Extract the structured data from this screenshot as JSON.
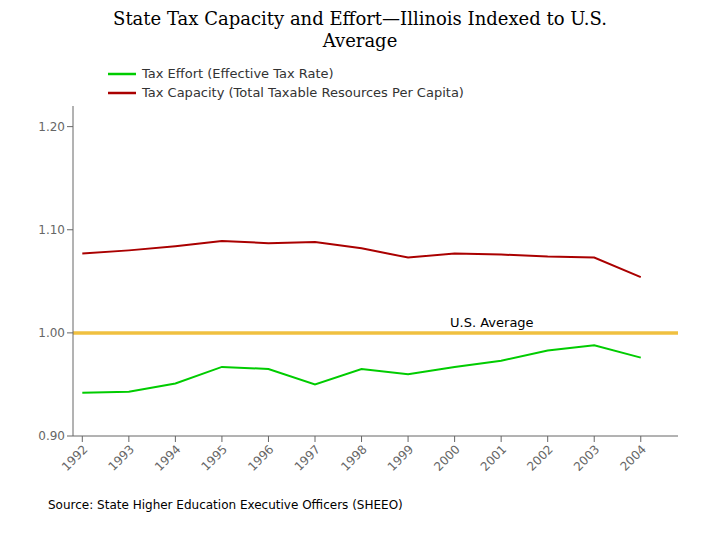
{
  "chart_data": {
    "type": "line",
    "title": "State Tax Capacity and Effort—Illinois Indexed to U.S.\nAverage",
    "x": [
      1992,
      1993,
      1994,
      1995,
      1996,
      1997,
      1998,
      1999,
      2000,
      2001,
      2002,
      2003,
      2004
    ],
    "series": [
      {
        "name": "Tax Effort (Effective Tax Rate)",
        "color": "#00CC00",
        "values": [
          0.942,
          0.943,
          0.951,
          0.967,
          0.965,
          0.95,
          0.965,
          0.96,
          0.967,
          0.973,
          0.983,
          0.988,
          0.976
        ]
      },
      {
        "name": "Tax Capacity (Total Taxable Resources Per Capita)",
        "color": "#AA0000",
        "values": [
          1.077,
          1.08,
          1.084,
          1.089,
          1.087,
          1.088,
          1.082,
          1.073,
          1.077,
          1.076,
          1.074,
          1.073,
          1.054
        ]
      }
    ],
    "hlines": [
      {
        "value": 1.0,
        "color": "#F0C040"
      }
    ],
    "annotations": [
      {
        "text": "U.S. Average",
        "x": 2000.8,
        "y": 1.0
      }
    ],
    "xlim": [
      1991.8,
      2004.8
    ],
    "xticks": [
      1992,
      1993,
      1994,
      1995,
      1996,
      1997,
      1998,
      1999,
      2000,
      2001,
      2002,
      2003,
      2004
    ],
    "ylim": [
      0.9,
      1.22
    ],
    "yticks": [
      {
        "value": 0.9,
        "label": "0.90"
      },
      {
        "value": 1.0,
        "label": "1.00"
      },
      {
        "value": 1.1,
        "label": "1.10"
      },
      {
        "value": 1.2,
        "label": "1.20"
      }
    ],
    "grid": false,
    "legend": "top",
    "source": "Source:  State Higher Education Executive Officers (SHEEO)"
  }
}
